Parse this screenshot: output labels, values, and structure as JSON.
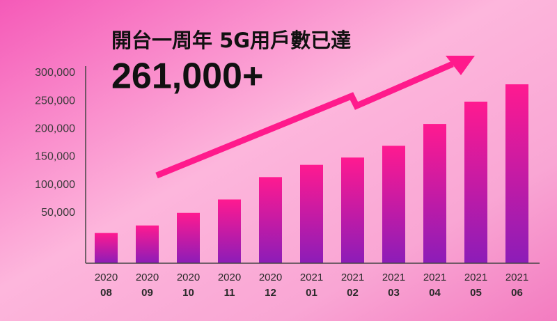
{
  "chart_data": {
    "type": "bar",
    "title": "開台一周年 5G用戶數已達",
    "subtitle": "261,000+",
    "categories": [
      [
        "2020",
        "08"
      ],
      [
        "2020",
        "09"
      ],
      [
        "2020",
        "10"
      ],
      [
        "2020",
        "11"
      ],
      [
        "2020",
        "12"
      ],
      [
        "2021",
        "01"
      ],
      [
        "2021",
        "02"
      ],
      [
        "2021",
        "03"
      ],
      [
        "2021",
        "04"
      ],
      [
        "2021",
        "05"
      ],
      [
        "2021",
        "06"
      ]
    ],
    "values": [
      14000,
      27500,
      50000,
      74000,
      114000,
      136000,
      149000,
      170000,
      209000,
      249000,
      280000
    ],
    "colors": [
      "#ff1a90",
      "#8c1cb8"
    ],
    "ylim": [
      -40000,
      310000
    ],
    "yticks": [
      {
        "value": 50000,
        "label": "50,000"
      },
      {
        "value": 100000,
        "label": "100,000"
      },
      {
        "value": 150000,
        "label": "150,000"
      },
      {
        "value": 200000,
        "label": "200,000"
      },
      {
        "value": 250000,
        "label": "250,000"
      },
      {
        "value": 300000,
        "label": "300,000"
      }
    ]
  }
}
